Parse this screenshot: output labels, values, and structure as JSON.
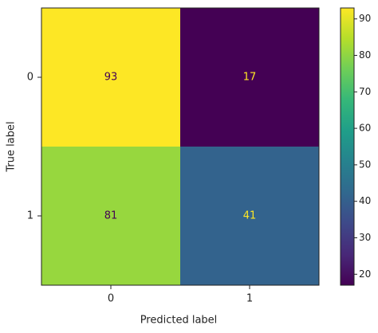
{
  "chart_data": {
    "type": "heatmap",
    "x_categories": [
      "0",
      "1"
    ],
    "y_categories": [
      "0",
      "1"
    ],
    "z": [
      [
        93,
        17
      ],
      [
        81,
        41
      ]
    ],
    "xlabel": "Predicted label",
    "ylabel": "True label",
    "colormap": "viridis",
    "clim": [
      17,
      93
    ],
    "cticks": [
      20,
      30,
      40,
      50,
      60,
      70,
      80,
      90
    ]
  }
}
